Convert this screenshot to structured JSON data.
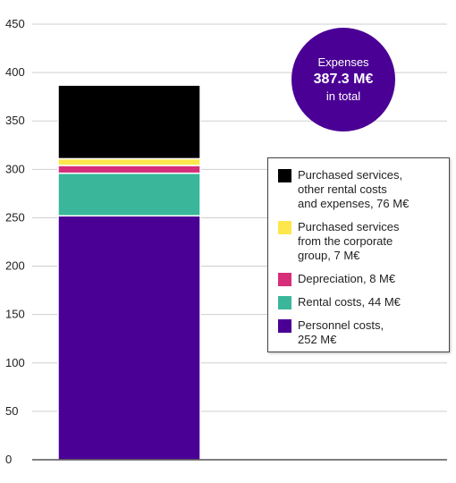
{
  "chart_data": {
    "type": "bar",
    "stacked": true,
    "categories": [
      ""
    ],
    "ylim": [
      0,
      450
    ],
    "yticks": [
      0,
      50,
      100,
      150,
      200,
      250,
      300,
      350,
      400,
      450
    ],
    "grid": true,
    "legend_position": "right",
    "series": [
      {
        "name": "Personnel costs,\n252 M€",
        "values": [
          252
        ],
        "color": "#4b0095"
      },
      {
        "name": "Rental costs, 44 M€",
        "values": [
          44
        ],
        "color": "#3ab79a"
      },
      {
        "name": "Depreciation, 8 M€",
        "values": [
          8
        ],
        "color": "#d62e78"
      },
      {
        "name": "Purchased services\nfrom the corporate\ngroup, 7 M€",
        "values": [
          7
        ],
        "color": "#fde74c"
      },
      {
        "name": "Purchased services,\nother rental costs\nand expenses, 76 M€",
        "values": [
          76
        ],
        "color": "#000000"
      }
    ],
    "annotation": {
      "label": "Expenses",
      "value": "387.3 M€",
      "sublabel": "in total",
      "color": "#4b0095"
    }
  }
}
